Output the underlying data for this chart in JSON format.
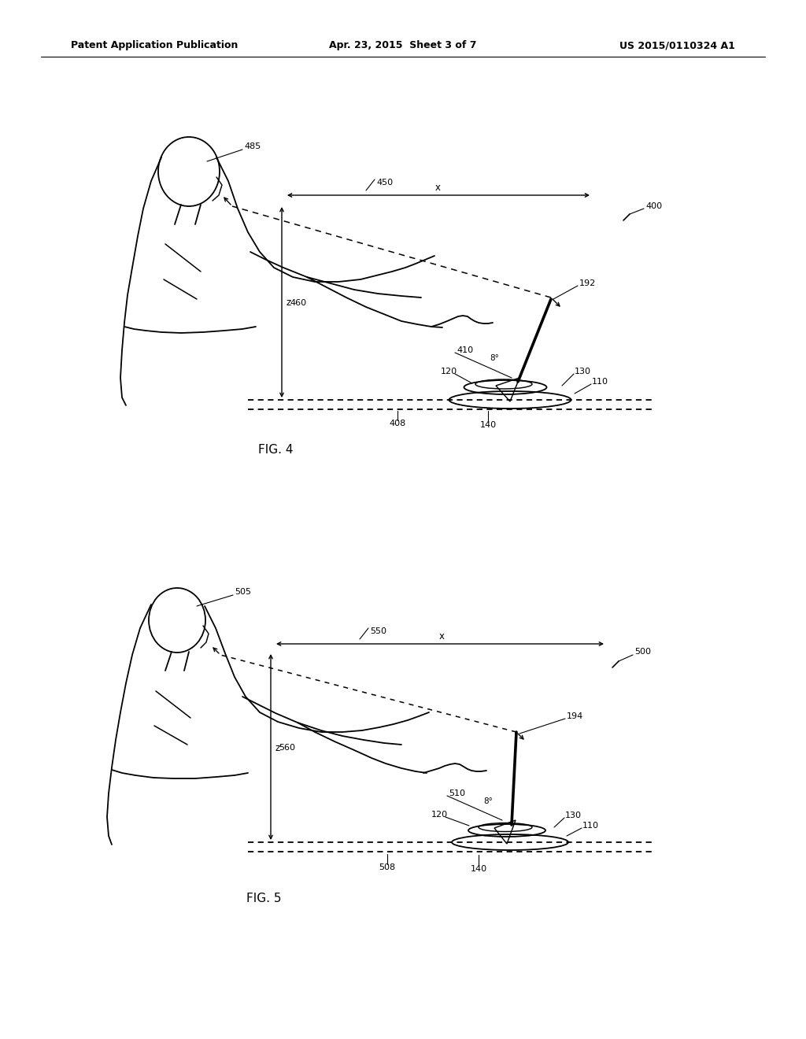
{
  "title_left": "Patent Application Publication",
  "title_mid": "Apr. 23, 2015  Sheet 3 of 7",
  "title_right": "US 2015/0110324 A1",
  "fig4_label": "FIG. 4",
  "fig5_label": "FIG. 5",
  "bg_color": "#ffffff",
  "line_color": "#000000"
}
